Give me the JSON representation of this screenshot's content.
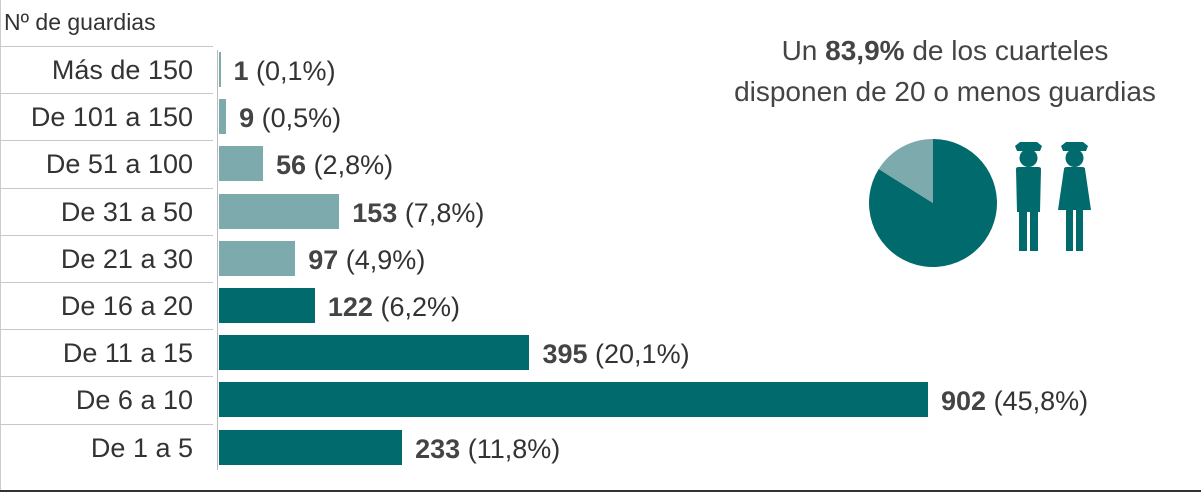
{
  "colors": {
    "dark": "#016a6c",
    "light": "#7caaad",
    "text": "#333333"
  },
  "header": {
    "label": "Nº de guardias"
  },
  "callout": {
    "line1_pre": "Un ",
    "line1_bold": "83,9%",
    "line1_post": " de los cuarteles",
    "line2": "disponen de 20 o menos guardias"
  },
  "icons": [
    "guard-icon",
    "guard-icon"
  ],
  "chart_data": {
    "type": "bar",
    "orientation": "horizontal",
    "categories": [
      "Más de 150",
      "De 101 a 150",
      "De 51 a 100",
      "De 31 a 50",
      "De 21 a 30",
      "De 16 a 20",
      "De 11 a 15",
      "De 6 a 10",
      "De 1 a 5"
    ],
    "values": [
      1,
      9,
      56,
      153,
      97,
      122,
      395,
      902,
      233
    ],
    "value_labels": [
      "1",
      "9",
      "56",
      "153",
      "97",
      "122",
      "395",
      "902",
      "233"
    ],
    "percent_labels": [
      "(0,1%)",
      "(0,5%)",
      "(2,8%)",
      "(7,8%)",
      "(4,9%)",
      "(6,2%)",
      "(20,1%)",
      "(45,8%)",
      "(11,8%)"
    ],
    "bar_colors": [
      "light",
      "light",
      "light",
      "light",
      "light",
      "dark",
      "dark",
      "dark",
      "dark"
    ],
    "xlim": [
      0,
      902
    ],
    "grid": false,
    "pie": {
      "type": "pie",
      "values": [
        83.9,
        16.1
      ],
      "colors": [
        "dark",
        "light"
      ]
    }
  }
}
